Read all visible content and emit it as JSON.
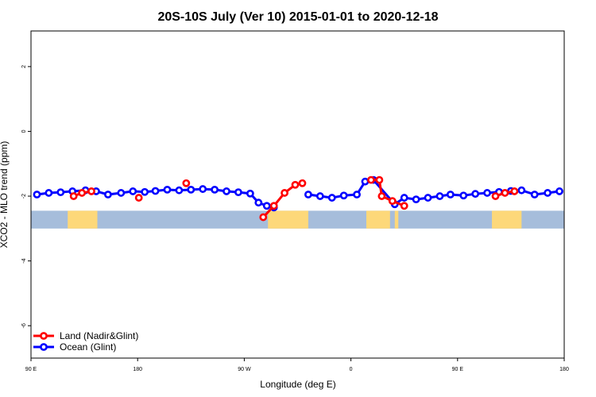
{
  "chart_data": {
    "type": "line",
    "title": "20S-10S July (Ver 10)   2015-01-01 to 2020-12-18",
    "xlabel": "Longitude (deg E)",
    "ylabel": "XCO2 - MLO trend (ppm)",
    "x_tick_labels": [
      "90 E",
      "180",
      "90 W",
      "0",
      "90 E",
      "180"
    ],
    "x_ticks": [
      90,
      180,
      270,
      360,
      450,
      540
    ],
    "xlim": [
      90,
      540
    ],
    "y_ticks": [
      2,
      0,
      -2,
      -4,
      -6
    ],
    "ylim": [
      -7,
      3.1
    ],
    "grid": false,
    "legend_position": "bottom-left",
    "colors": {
      "land": "#ff0000",
      "ocean": "#0000ff",
      "ocean_band": "#a6bddb",
      "land_band": "#fdd87a"
    },
    "land_mask_band": {
      "y_range": [
        -3.0,
        -2.45
      ]
    },
    "land_mask_segments": [
      [
        121,
        146
      ],
      [
        290,
        324
      ],
      [
        373,
        393
      ],
      [
        397,
        400
      ],
      [
        479,
        504
      ]
    ],
    "series": [
      {
        "name": "Land (Nadir&Glint)",
        "color": "#ff0000",
        "segments": [
          [
            [
              126,
              -2.0
            ],
            [
              133,
              -1.9
            ],
            [
              141,
              -1.85
            ]
          ],
          [
            [
              181,
              -2.05
            ]
          ],
          [
            [
              221,
              -1.6
            ]
          ],
          [
            [
              286,
              -2.65
            ],
            [
              295,
              -2.3
            ],
            [
              304,
              -1.9
            ],
            [
              313,
              -1.65
            ],
            [
              319,
              -1.6
            ]
          ],
          [
            [
              377,
              -1.5
            ],
            [
              384,
              -1.5
            ],
            [
              386,
              -2.0
            ],
            [
              395,
              -2.15
            ],
            [
              405,
              -2.3
            ]
          ],
          [
            [
              482,
              -2.0
            ],
            [
              490,
              -1.9
            ],
            [
              498,
              -1.85
            ]
          ]
        ]
      },
      {
        "name": "Ocean (Glint)",
        "color": "#0000ff",
        "segments": [
          [
            [
              95,
              -1.95
            ],
            [
              105,
              -1.9
            ],
            [
              115,
              -1.88
            ],
            [
              125,
              -1.85
            ],
            [
              136,
              -1.82
            ],
            [
              145,
              -1.85
            ],
            [
              155,
              -1.95
            ],
            [
              166,
              -1.9
            ],
            [
              176,
              -1.85
            ],
            [
              186,
              -1.87
            ],
            [
              195,
              -1.84
            ],
            [
              205,
              -1.8
            ],
            [
              215,
              -1.82
            ],
            [
              225,
              -1.8
            ],
            [
              235,
              -1.78
            ],
            [
              245,
              -1.8
            ],
            [
              255,
              -1.85
            ],
            [
              265,
              -1.88
            ],
            [
              275,
              -1.92
            ],
            [
              282,
              -2.2
            ],
            [
              289,
              -2.3
            ],
            [
              295,
              -2.35
            ]
          ],
          [
            [
              324,
              -1.95
            ],
            [
              334,
              -2.0
            ],
            [
              344,
              -2.05
            ],
            [
              354,
              -1.98
            ],
            [
              365,
              -1.95
            ],
            [
              372,
              -1.55
            ],
            [
              379,
              -1.5
            ],
            [
              397,
              -2.25
            ],
            [
              405,
              -2.05
            ],
            [
              415,
              -2.1
            ],
            [
              425,
              -2.05
            ],
            [
              435,
              -2.0
            ],
            [
              444,
              -1.95
            ],
            [
              455,
              -1.98
            ],
            [
              465,
              -1.93
            ],
            [
              475,
              -1.9
            ],
            [
              485,
              -1.87
            ],
            [
              495,
              -1.84
            ],
            [
              504,
              -1.82
            ],
            [
              515,
              -1.95
            ],
            [
              526,
              -1.9
            ],
            [
              536,
              -1.85
            ]
          ]
        ]
      }
    ]
  }
}
